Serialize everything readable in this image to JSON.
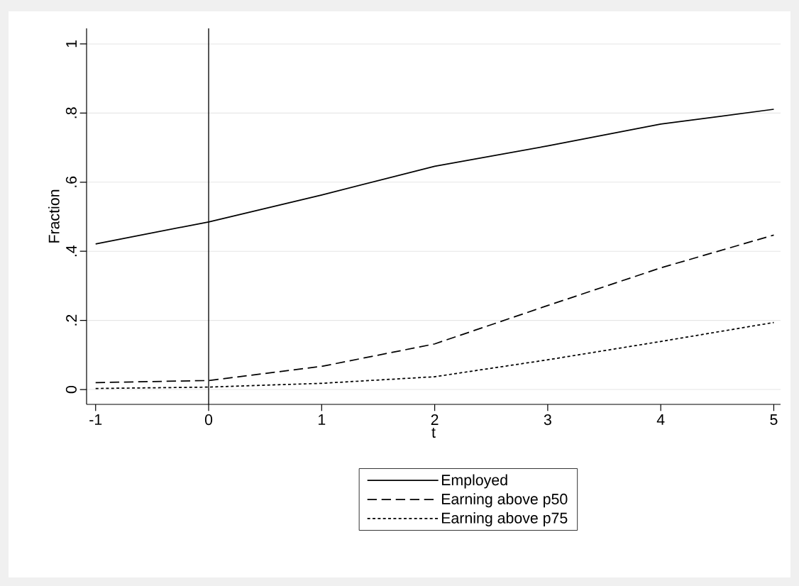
{
  "chart_data": {
    "type": "line",
    "xlabel": "t",
    "ylabel": "Fraction",
    "x": [
      -1,
      0,
      1,
      2,
      3,
      4,
      5
    ],
    "series": [
      {
        "name": "Employed",
        "color": "#000000",
        "line_style": "solid",
        "values": [
          0.421,
          0.485,
          0.563,
          0.646,
          0.705,
          0.768,
          0.811
        ]
      },
      {
        "name": "Earning above p50",
        "color": "#000000",
        "line_style": "dashed",
        "values": [
          0.02,
          0.026,
          0.067,
          0.132,
          0.243,
          0.352,
          0.447
        ]
      },
      {
        "name": "Earning above p75",
        "color": "#000000",
        "line_style": "dotted",
        "values": [
          0.003,
          0.007,
          0.018,
          0.037,
          0.086,
          0.139,
          0.194
        ]
      }
    ],
    "xlim": [
      -1.08,
      5.06
    ],
    "ylim": [
      -0.043,
      1.045
    ],
    "xticks": [
      -1,
      0,
      1,
      2,
      3,
      4,
      5
    ],
    "yticks": [
      {
        "value": 0,
        "label": "0"
      },
      {
        "value": 0.2,
        "label": ".2"
      },
      {
        "value": 0.4,
        "label": ".4"
      },
      {
        "value": 0.6,
        "label": ".6"
      },
      {
        "value": 0.8,
        "label": ".8"
      },
      {
        "value": 1,
        "label": "1"
      }
    ],
    "grid": "y",
    "legend": "bottom",
    "marker": "none",
    "ref_lines": [
      {
        "axis": "x",
        "value": 0,
        "color": "#000000",
        "line_style": "solid"
      }
    ]
  }
}
